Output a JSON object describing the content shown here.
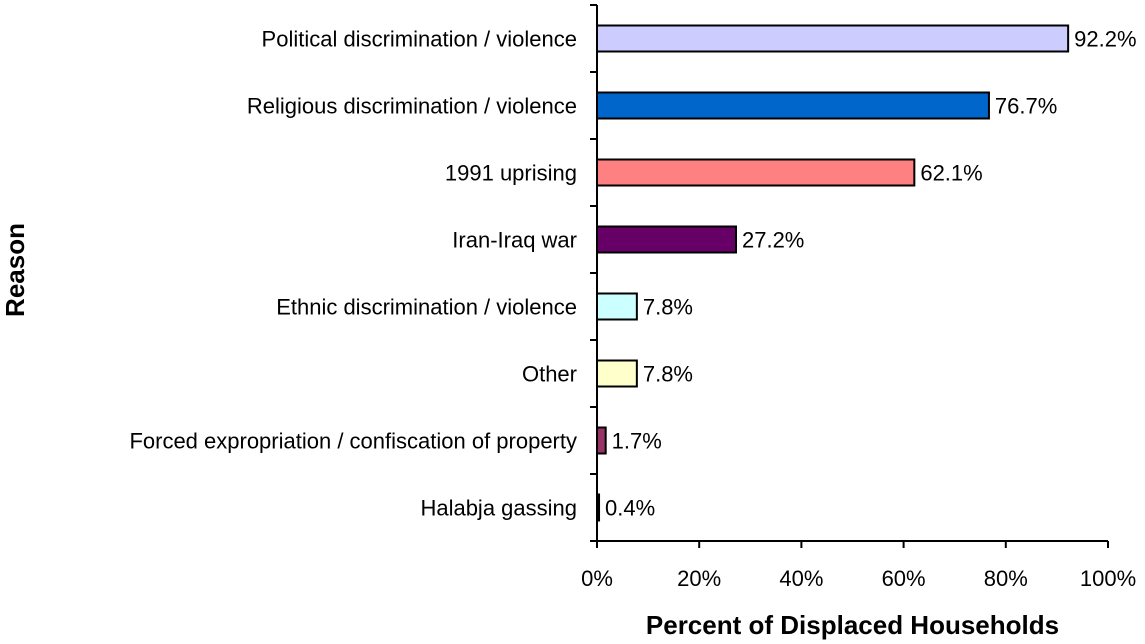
{
  "chart_data": {
    "type": "bar",
    "orientation": "horizontal",
    "categories": [
      "Political discrimination / violence",
      "Religious discrimination / violence",
      "1991 uprising",
      "Iran-Iraq war",
      "Ethnic discrimination / violence",
      "Other",
      "Forced expropriation / confiscation of property",
      "Halabja gassing"
    ],
    "values": [
      92.2,
      76.7,
      62.1,
      27.2,
      7.8,
      7.8,
      1.7,
      0.4
    ],
    "value_labels": [
      "92.2%",
      "76.7%",
      "62.1%",
      "27.2%",
      "7.8%",
      "7.8%",
      "1.7%",
      "0.4%"
    ],
    "colors": [
      "#ccccff",
      "#0066cc",
      "#ff8080",
      "#660066",
      "#ccffff",
      "#ffffcc",
      "#993366",
      "#000080"
    ],
    "xlabel": "Percent of Displaced Households",
    "ylabel": "Reason",
    "xlim": [
      0,
      100
    ],
    "xticks": [
      0,
      20,
      40,
      60,
      80,
      100
    ],
    "xtick_labels": [
      "0%",
      "20%",
      "40%",
      "60%",
      "80%",
      "100%"
    ],
    "grid": false,
    "legend": "none"
  }
}
